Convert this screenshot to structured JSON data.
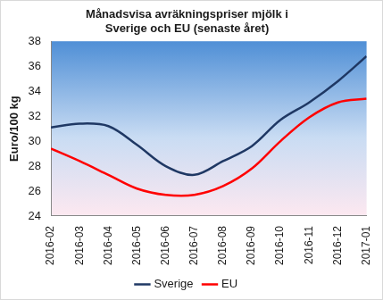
{
  "chart_data": {
    "type": "line",
    "title": [
      "Månadsvisa avräkningspriser mjölk i",
      "Sverige och EU (senaste året)"
    ],
    "y_label": "Euro/100 kg",
    "categories": [
      "2016-02",
      "2016-03",
      "2016-04",
      "2016-05",
      "2016-06",
      "2016-07",
      "2016-08",
      "2016-09",
      "2016-10",
      "2016-11",
      "2016-12",
      "2017-01"
    ],
    "series": [
      {
        "name": "Sverige",
        "color": "#1f3864",
        "values": [
          31.1,
          31.4,
          31.2,
          29.7,
          28.0,
          27.3,
          28.4,
          29.6,
          31.7,
          33.1,
          34.8,
          36.8
        ]
      },
      {
        "name": "EU",
        "color": "#ff0000",
        "values": [
          29.4,
          28.4,
          27.3,
          26.2,
          25.7,
          25.7,
          26.4,
          27.8,
          30.0,
          31.9,
          33.1,
          33.4
        ]
      }
    ],
    "ylim": [
      24,
      38
    ],
    "yticks": [
      24,
      26,
      28,
      30,
      32,
      34,
      36,
      38
    ],
    "grid": false,
    "legend": "bottom"
  }
}
